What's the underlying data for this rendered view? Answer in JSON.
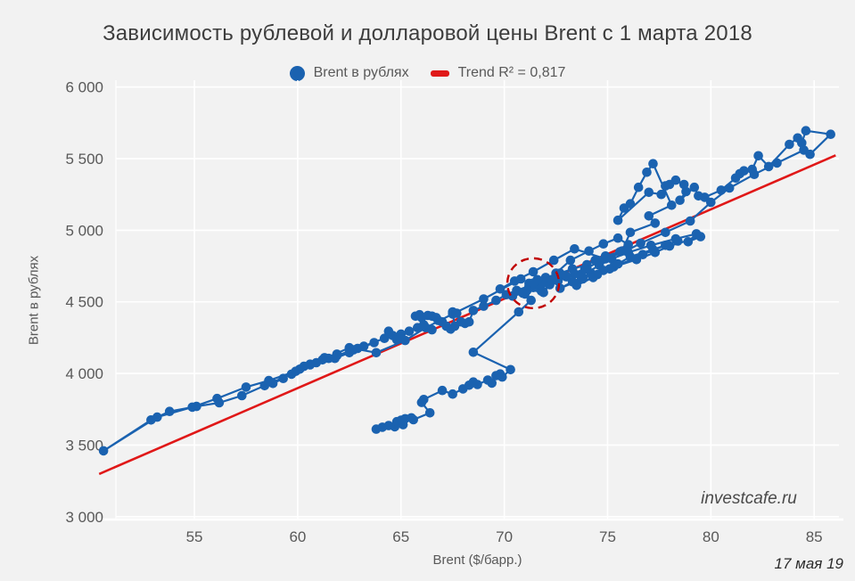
{
  "title": "Зависимость рублевой и долларовой цены Brent с 1 марта 2018",
  "watermark": "investcafe.ru",
  "date_note": "17 мая 19",
  "colors": {
    "background": "#f2f2f2",
    "gridline": "#ffffff",
    "series_blue": "#1a62b0",
    "trend_red": "#e01818",
    "annotation_red": "#c00000",
    "tick_text": "#595959"
  },
  "legend": {
    "series_label": "Brent в рублях",
    "trend_label": "Trend R² = 0,817"
  },
  "chart_data": {
    "type": "scatter",
    "title": "Зависимость рублевой и долларовой цены Brent с 1 марта 2018",
    "xlabel": "Brent ($/барр.)",
    "ylabel": "Brent в рублях",
    "connected": true,
    "grid": true,
    "legend_position": "top-center",
    "x_axis": {
      "min": 51.2,
      "max": 86.2
    },
    "y_axis": {
      "min": 2980,
      "max": 6048
    },
    "xticks": [
      {
        "v": 55,
        "label": "55"
      },
      {
        "v": 60,
        "label": "60"
      },
      {
        "v": 65,
        "label": "65"
      },
      {
        "v": 70,
        "label": "70"
      },
      {
        "v": 75,
        "label": "75"
      },
      {
        "v": 80,
        "label": "80"
      },
      {
        "v": 85,
        "label": "85"
      }
    ],
    "yticks": [
      {
        "v": 6000,
        "label": "6 000"
      },
      {
        "v": 5500,
        "label": "5 500"
      },
      {
        "v": 5000,
        "label": "5 000"
      },
      {
        "v": 4500,
        "label": "4 500"
      },
      {
        "v": 4000,
        "label": "4 000"
      },
      {
        "v": 3500,
        "label": "3 500"
      },
      {
        "v": 3000,
        "label": "3 000"
      }
    ],
    "trend": {
      "label": "Trend R² = 0,817",
      "r2": "0,817",
      "x1": 50.39,
      "y1": 3298,
      "x2": 86.04,
      "y2": 5523
    },
    "annotation_circle": {
      "x": 71.4,
      "y": 4630
    },
    "series": [
      {
        "name": "Brent в рублях",
        "points": [
          [
            63.8,
            3611
          ],
          [
            64.1,
            3625
          ],
          [
            64.4,
            3636
          ],
          [
            64.7,
            3628
          ],
          [
            64.8,
            3663
          ],
          [
            65.1,
            3642
          ],
          [
            65.0,
            3673
          ],
          [
            65.2,
            3684
          ],
          [
            65.5,
            3690
          ],
          [
            65.6,
            3677
          ],
          [
            66.4,
            3725
          ],
          [
            66.0,
            3798
          ],
          [
            66.1,
            3818
          ],
          [
            67.0,
            3881
          ],
          [
            67.5,
            3856
          ],
          [
            68.0,
            3892
          ],
          [
            68.3,
            3918
          ],
          [
            68.5,
            3940
          ],
          [
            68.7,
            3923
          ],
          [
            69.2,
            3954
          ],
          [
            69.4,
            3933
          ],
          [
            69.6,
            3985
          ],
          [
            69.8,
            3996
          ],
          [
            69.9,
            3975
          ],
          [
            70.3,
            4027
          ],
          [
            68.5,
            4148
          ],
          [
            70.7,
            4430
          ],
          [
            71.3,
            4510
          ],
          [
            71.0,
            4555
          ],
          [
            71.6,
            4600
          ],
          [
            72.1,
            4640
          ],
          [
            71.8,
            4575
          ],
          [
            72.6,
            4645
          ],
          [
            73.4,
            4695
          ],
          [
            74.0,
            4740
          ],
          [
            73.7,
            4680
          ],
          [
            74.6,
            4755
          ],
          [
            75.2,
            4800
          ],
          [
            76.0,
            4845
          ],
          [
            77.1,
            4895
          ],
          [
            78.3,
            4940
          ],
          [
            79.3,
            4975
          ],
          [
            78.9,
            4920
          ],
          [
            79.5,
            4955
          ],
          [
            78.0,
            4890
          ],
          [
            77.3,
            4845
          ],
          [
            76.4,
            4795
          ],
          [
            75.3,
            4745
          ],
          [
            74.2,
            4700
          ],
          [
            73.3,
            4640
          ],
          [
            72.7,
            4595
          ],
          [
            73.8,
            4660
          ],
          [
            74.8,
            4720
          ],
          [
            75.5,
            4765
          ],
          [
            76.1,
            4815
          ],
          [
            77.2,
            4865
          ],
          [
            78.4,
            4925
          ],
          [
            77.8,
            4895
          ],
          [
            76.7,
            4830
          ],
          [
            75.1,
            4730
          ],
          [
            74.3,
            4670
          ],
          [
            73.5,
            4615
          ],
          [
            74.5,
            4690
          ],
          [
            73.0,
            4675
          ],
          [
            72.2,
            4620
          ],
          [
            71.9,
            4565
          ],
          [
            72.5,
            4700
          ],
          [
            73.2,
            4790
          ],
          [
            74.1,
            4855
          ],
          [
            74.8,
            4905
          ],
          [
            75.5,
            4945
          ],
          [
            76.0,
            4900
          ],
          [
            75.7,
            4855
          ],
          [
            76.1,
            4985
          ],
          [
            77.3,
            5050
          ],
          [
            77.0,
            5100
          ],
          [
            78.1,
            5175
          ],
          [
            77.2,
            5465
          ],
          [
            76.9,
            5405
          ],
          [
            76.5,
            5300
          ],
          [
            76.1,
            5185
          ],
          [
            75.8,
            5155
          ],
          [
            75.5,
            5070
          ],
          [
            77.0,
            5265
          ],
          [
            77.6,
            5250
          ],
          [
            77.8,
            5310
          ],
          [
            78.0,
            5320
          ],
          [
            78.3,
            5350
          ],
          [
            78.7,
            5320
          ],
          [
            78.8,
            5270
          ],
          [
            78.5,
            5210
          ],
          [
            79.2,
            5300
          ],
          [
            79.4,
            5240
          ],
          [
            79.7,
            5230
          ],
          [
            80.5,
            5280
          ],
          [
            81.2,
            5365
          ],
          [
            81.4,
            5395
          ],
          [
            81.6,
            5415
          ],
          [
            82.0,
            5425
          ],
          [
            82.3,
            5520
          ],
          [
            82.8,
            5445
          ],
          [
            83.8,
            5600
          ],
          [
            84.2,
            5645
          ],
          [
            84.4,
            5610
          ],
          [
            84.6,
            5695
          ],
          [
            85.8,
            5670
          ],
          [
            84.8,
            5530
          ],
          [
            84.5,
            5560
          ],
          [
            83.2,
            5470
          ],
          [
            82.1,
            5390
          ],
          [
            80.9,
            5295
          ],
          [
            80.0,
            5195
          ],
          [
            79.0,
            5065
          ],
          [
            77.8,
            4985
          ],
          [
            76.6,
            4910
          ],
          [
            75.9,
            4855
          ],
          [
            74.9,
            4800
          ],
          [
            73.4,
            4870
          ],
          [
            72.4,
            4790
          ],
          [
            71.4,
            4710
          ],
          [
            70.5,
            4645
          ],
          [
            69.8,
            4590
          ],
          [
            70.8,
            4660
          ],
          [
            69.0,
            4520
          ],
          [
            67.5,
            4415
          ],
          [
            66.2,
            4320
          ],
          [
            65.2,
            4230
          ],
          [
            63.8,
            4145
          ],
          [
            62.5,
            4180
          ],
          [
            61.2,
            4095
          ],
          [
            60.1,
            4030
          ],
          [
            59.3,
            3965
          ],
          [
            58.8,
            3930
          ],
          [
            60.3,
            4050
          ],
          [
            61.3,
            4110
          ],
          [
            61.9,
            4135
          ],
          [
            60.6,
            4065
          ],
          [
            59.7,
            3995
          ],
          [
            58.4,
            3915
          ],
          [
            57.3,
            3845
          ],
          [
            56.2,
            3795
          ],
          [
            55.1,
            3770
          ],
          [
            53.8,
            3735
          ],
          [
            52.9,
            3675
          ],
          [
            50.6,
            3460
          ],
          [
            53.2,
            3695
          ],
          [
            54.9,
            3765
          ],
          [
            56.1,
            3825
          ],
          [
            57.5,
            3905
          ],
          [
            58.6,
            3950
          ],
          [
            59.9,
            4015
          ],
          [
            60.6,
            4060
          ],
          [
            61.5,
            4105
          ],
          [
            60.9,
            4075
          ],
          [
            61.9,
            4125
          ],
          [
            62.7,
            4165
          ],
          [
            63.2,
            4190
          ],
          [
            63.7,
            4215
          ],
          [
            62.5,
            4145
          ],
          [
            61.8,
            4105
          ],
          [
            62.9,
            4175
          ],
          [
            64.2,
            4245
          ],
          [
            64.4,
            4295
          ],
          [
            64.6,
            4265
          ],
          [
            64.8,
            4235
          ],
          [
            65.4,
            4295
          ],
          [
            65.0,
            4275
          ],
          [
            65.8,
            4320
          ],
          [
            66.5,
            4305
          ],
          [
            66.1,
            4340
          ],
          [
            65.7,
            4400
          ],
          [
            65.9,
            4410
          ],
          [
            66.0,
            4390
          ],
          [
            66.3,
            4405
          ],
          [
            66.5,
            4400
          ],
          [
            66.7,
            4390
          ],
          [
            66.8,
            4370
          ],
          [
            67.0,
            4360
          ],
          [
            67.2,
            4330
          ],
          [
            67.4,
            4310
          ],
          [
            67.6,
            4330
          ],
          [
            67.5,
            4430
          ],
          [
            67.7,
            4420
          ],
          [
            67.9,
            4360
          ],
          [
            68.1,
            4350
          ],
          [
            68.3,
            4360
          ],
          [
            68.5,
            4440
          ],
          [
            69.0,
            4470
          ],
          [
            69.6,
            4510
          ],
          [
            70.1,
            4550
          ],
          [
            70.6,
            4580
          ],
          [
            71.2,
            4610
          ],
          [
            71.7,
            4640
          ],
          [
            72.0,
            4670
          ],
          [
            72.7,
            4700
          ],
          [
            73.3,
            4730
          ],
          [
            74.0,
            4760
          ],
          [
            74.4,
            4790
          ],
          [
            74.9,
            4820
          ],
          [
            75.6,
            4850
          ],
          [
            74.6,
            4780
          ],
          [
            73.9,
            4730
          ],
          [
            73.0,
            4680
          ],
          [
            72.3,
            4650
          ],
          [
            71.8,
            4620
          ],
          [
            71.1,
            4580
          ],
          [
            70.4,
            4540
          ],
          [
            70.9,
            4560
          ],
          [
            71.4,
            4600
          ],
          [
            71.2,
            4630
          ],
          [
            71.6,
            4655
          ],
          [
            71.4,
            4631
          ]
        ]
      }
    ]
  }
}
